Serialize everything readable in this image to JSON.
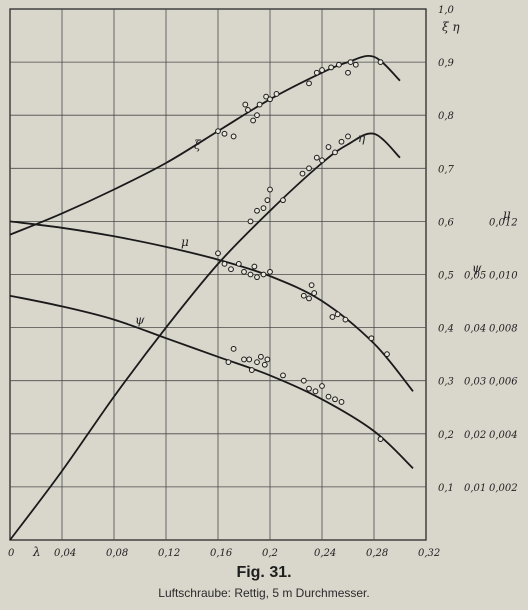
{
  "figure": {
    "title": "Fig. 31.",
    "caption": "Luftschraube: Rettig, 5 m Durchmesser."
  },
  "chart_data": {
    "type": "line",
    "xlabel": "λ",
    "x_ticks": [
      "0",
      "0,04",
      "0,08",
      "0,12",
      "0,16",
      "0,2",
      "0,24",
      "0,28",
      "0,32"
    ],
    "x_tick_values": [
      0,
      0.04,
      0.08,
      0.12,
      0.16,
      0.2,
      0.24,
      0.28,
      0.32
    ],
    "xlim": [
      0,
      0.32
    ],
    "ylim": [
      0,
      1.0
    ],
    "grid": true,
    "axes": [
      {
        "symbols": "ξ η",
        "ticks": [
          "0,1",
          "0,2",
          "0,3",
          "0,4",
          "0,5",
          "0,6",
          "0,7",
          "0,8",
          "0,9",
          "1,0"
        ],
        "tick_values": [
          0.1,
          0.2,
          0.3,
          0.4,
          0.5,
          0.6,
          0.7,
          0.8,
          0.9,
          1.0
        ]
      },
      {
        "symbol": "ψ",
        "ticks": [
          "0,01",
          "0,02",
          "0,03",
          "0,04",
          "0,05"
        ],
        "tick_values": [
          0.01,
          0.02,
          0.03,
          0.04,
          0.05
        ]
      },
      {
        "symbol": "μ",
        "ticks": [
          "0,002",
          "0,004",
          "0,006",
          "0,008",
          "0,010",
          "0,012"
        ],
        "tick_values": [
          0.002,
          0.004,
          0.006,
          0.008,
          0.01,
          0.012
        ]
      }
    ],
    "series": [
      {
        "name": "ξ",
        "x": [
          0,
          0.04,
          0.08,
          0.12,
          0.16,
          0.2,
          0.24,
          0.26,
          0.28,
          0.3
        ],
        "y": [
          0.575,
          0.615,
          0.66,
          0.71,
          0.77,
          0.83,
          0.88,
          0.9,
          0.91,
          0.865
        ]
      },
      {
        "name": "η",
        "x": [
          0,
          0.04,
          0.08,
          0.12,
          0.16,
          0.2,
          0.24,
          0.26,
          0.28,
          0.3
        ],
        "y": [
          0,
          0.13,
          0.27,
          0.4,
          0.52,
          0.62,
          0.71,
          0.745,
          0.765,
          0.72
        ]
      },
      {
        "name": "μ",
        "x": [
          0,
          0.04,
          0.08,
          0.12,
          0.16,
          0.2,
          0.24,
          0.28,
          0.31
        ],
        "y": [
          0.6,
          0.588,
          0.572,
          0.552,
          0.528,
          0.497,
          0.45,
          0.37,
          0.28
        ]
      },
      {
        "name": "ψ",
        "x": [
          0,
          0.04,
          0.08,
          0.12,
          0.16,
          0.2,
          0.24,
          0.28,
          0.31
        ],
        "y": [
          0.46,
          0.44,
          0.415,
          0.38,
          0.345,
          0.31,
          0.265,
          0.205,
          0.135
        ]
      }
    ],
    "points": [
      {
        "series": "ξ",
        "x": [
          0.16,
          0.165,
          0.172,
          0.181,
          0.183,
          0.187,
          0.19,
          0.192,
          0.197,
          0.2,
          0.205,
          0.23,
          0.236,
          0.24,
          0.247,
          0.253,
          0.26,
          0.262,
          0.266,
          0.285
        ],
        "y": [
          0.77,
          0.765,
          0.76,
          0.82,
          0.81,
          0.79,
          0.8,
          0.82,
          0.835,
          0.83,
          0.84,
          0.86,
          0.88,
          0.885,
          0.89,
          0.895,
          0.88,
          0.9,
          0.895,
          0.9
        ]
      },
      {
        "series": "η",
        "x": [
          0.185,
          0.19,
          0.195,
          0.198,
          0.2,
          0.21,
          0.225,
          0.23,
          0.236,
          0.24,
          0.245,
          0.25,
          0.255,
          0.26
        ],
        "y": [
          0.6,
          0.62,
          0.625,
          0.64,
          0.66,
          0.64,
          0.69,
          0.7,
          0.72,
          0.715,
          0.74,
          0.73,
          0.75,
          0.76
        ]
      },
      {
        "series": "μ",
        "x": [
          0.16,
          0.165,
          0.17,
          0.176,
          0.18,
          0.185,
          0.188,
          0.19,
          0.195,
          0.2,
          0.226,
          0.23,
          0.232,
          0.234,
          0.248,
          0.252,
          0.258,
          0.278,
          0.29
        ],
        "y": [
          0.54,
          0.52,
          0.51,
          0.52,
          0.505,
          0.5,
          0.515,
          0.495,
          0.5,
          0.505,
          0.46,
          0.455,
          0.48,
          0.465,
          0.42,
          0.425,
          0.415,
          0.38,
          0.35
        ]
      },
      {
        "series": "ψ",
        "x": [
          0.168,
          0.172,
          0.18,
          0.184,
          0.186,
          0.19,
          0.193,
          0.196,
          0.198,
          0.21,
          0.226,
          0.23,
          0.235,
          0.24,
          0.245,
          0.25,
          0.255,
          0.285
        ],
        "y": [
          0.335,
          0.36,
          0.34,
          0.34,
          0.32,
          0.335,
          0.345,
          0.33,
          0.34,
          0.31,
          0.3,
          0.285,
          0.28,
          0.29,
          0.27,
          0.265,
          0.26,
          0.19
        ]
      }
    ]
  }
}
